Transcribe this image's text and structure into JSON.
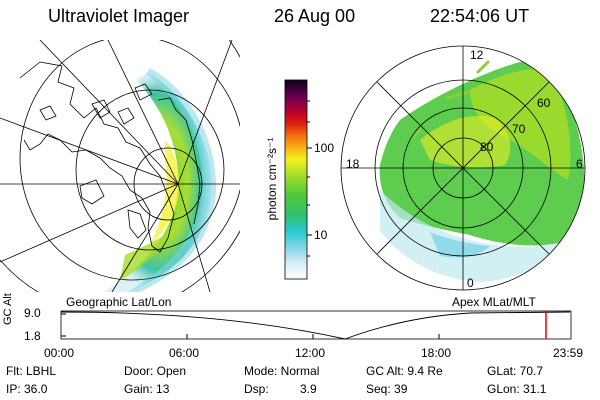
{
  "header": {
    "instrument": "Ultraviolet Imager",
    "date": "26 Aug 00",
    "time": "22:54:06 UT"
  },
  "left_panel": {
    "label": "Geographic Lat/Lon"
  },
  "right_panel": {
    "label": "Apex MLat/MLT",
    "mlt_labels": {
      "top": "12",
      "left": "18",
      "right": "6",
      "bottom": "0"
    },
    "lat_labels": [
      "60",
      "70",
      "80"
    ]
  },
  "colorbar": {
    "unit": "photon cm⁻²s⁻¹",
    "ticks": [
      "100",
      "10"
    ]
  },
  "timeline": {
    "axis_label": "GC Alt",
    "y_max": "9.0",
    "y_min": "1.8",
    "ticks": [
      "00:00",
      "06:00",
      "12:00",
      "18:00",
      "23:59"
    ],
    "marker_color": "#e8000d"
  },
  "status": {
    "filter": "Flt: LBHL",
    "ip": "IP: 36.0",
    "door": "Door: Open",
    "gain": "Gain: 13",
    "mode": "Mode: Normal",
    "dsp_label": "Dsp:",
    "dsp_value": "3.9",
    "gc_alt": "GC Alt: 9.4 Re",
    "seq": "Seq: 39",
    "glat": "GLat: 70.7",
    "glon": "GLon: 31.1"
  }
}
